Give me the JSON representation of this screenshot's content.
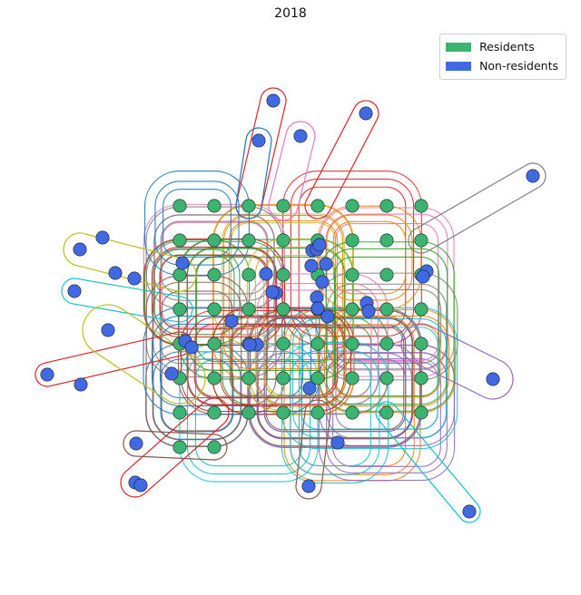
{
  "title": "2018",
  "legend": {
    "residents_label": "Residents",
    "non_residents_label": "Non-residents"
  },
  "colors": {
    "residents": "#3cb371",
    "non_residents": "#4169e1",
    "edge_palette": [
      "#1f77b4",
      "#ff7f0e",
      "#2ca02c",
      "#d62728",
      "#9467bd",
      "#8c564b",
      "#e377c2",
      "#7f7f7f",
      "#bcbd22",
      "#17becf"
    ]
  },
  "grid": {
    "columns": 8,
    "rows": 8,
    "resident_count": 58
  },
  "non_resident_count": 44
}
